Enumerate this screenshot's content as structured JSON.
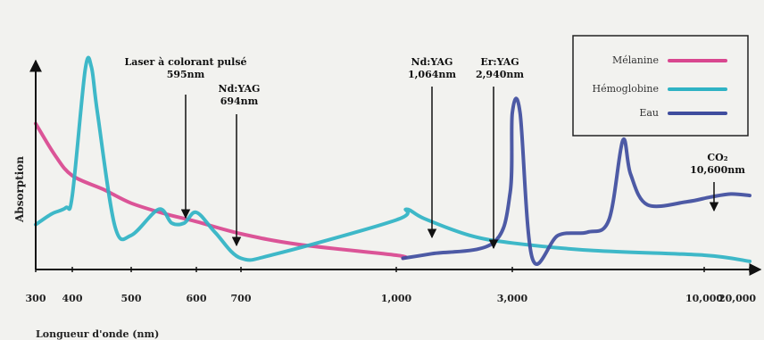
{
  "chart_data": {
    "type": "line",
    "title": "",
    "xlabel": "Longueur d'onde (nm)",
    "ylabel": "Absorption",
    "xscale": "log",
    "xlim": [
      300,
      20000
    ],
    "x_ticks": [
      {
        "value": 300,
        "label": "300"
      },
      {
        "value": 400,
        "label": "400"
      },
      {
        "value": 500,
        "label": "500"
      },
      {
        "value": 600,
        "label": "600"
      },
      {
        "value": 700,
        "label": "700"
      },
      {
        "value": 1000,
        "label": "1,000"
      },
      {
        "value": 3000,
        "label": "3,000"
      },
      {
        "value": 10000,
        "label": "10,000"
      },
      {
        "value": 20000,
        "label": "20,000"
      }
    ],
    "legend_position": "top-right",
    "series": [
      {
        "name": "Mélanine",
        "color": "#d9478f",
        "points": [
          [
            300,
            0.93
          ],
          [
            350,
            0.72
          ],
          [
            400,
            0.59
          ],
          [
            450,
            0.5
          ],
          [
            500,
            0.41
          ],
          [
            550,
            0.34
          ],
          [
            600,
            0.29
          ],
          [
            700,
            0.21
          ],
          [
            800,
            0.14
          ],
          [
            1000,
            0.07
          ],
          [
            1065,
            0.05
          ]
        ]
      },
      {
        "name": "Hémoglobine",
        "color": "#2fb3c4",
        "points": [
          [
            300,
            0.27
          ],
          [
            340,
            0.34
          ],
          [
            380,
            0.38
          ],
          [
            400,
            0.46
          ],
          [
            420,
            1.28
          ],
          [
            430,
            1.3
          ],
          [
            440,
            1.0
          ],
          [
            470,
            0.26
          ],
          [
            500,
            0.2
          ],
          [
            540,
            0.37
          ],
          [
            560,
            0.28
          ],
          [
            580,
            0.28
          ],
          [
            600,
            0.35
          ],
          [
            640,
            0.22
          ],
          [
            700,
            0.05
          ],
          [
            760,
            0.08
          ],
          [
            1000,
            0.3
          ],
          [
            1100,
            0.37
          ],
          [
            1300,
            0.31
          ],
          [
            2000,
            0.2
          ],
          [
            3000,
            0.15
          ],
          [
            5000,
            0.1
          ],
          [
            10000,
            0.07
          ],
          [
            20000,
            0.03
          ]
        ]
      },
      {
        "name": "Eau",
        "color": "#3f4d9e",
        "points": [
          [
            1065,
            0.05
          ],
          [
            1400,
            0.08
          ],
          [
            2500,
            0.15
          ],
          [
            2940,
            0.48
          ],
          [
            3000,
            1.0
          ],
          [
            3150,
            1.0
          ],
          [
            3400,
            0.05
          ],
          [
            4000,
            0.2
          ],
          [
            4800,
            0.22
          ],
          [
            5500,
            0.3
          ],
          [
            6000,
            0.82
          ],
          [
            6300,
            0.6
          ],
          [
            7000,
            0.4
          ],
          [
            9000,
            0.42
          ],
          [
            11000,
            0.45
          ],
          [
            15000,
            0.47
          ],
          [
            20000,
            0.46
          ]
        ]
      }
    ],
    "annotations": [
      {
        "lines": [
          "Laser à colorant pulsé",
          "595nm"
        ],
        "x": 595
      },
      {
        "lines": [
          "Nd:YAG",
          "694nm"
        ],
        "x": 694
      },
      {
        "lines": [
          "Nd:YAG",
          "1,064nm"
        ],
        "x": 1064
      },
      {
        "lines": [
          "Er:YAG",
          "2,940nm"
        ],
        "x": 2940
      },
      {
        "lines": [
          "CO₂",
          "10,600nm"
        ],
        "x": 10600
      }
    ]
  }
}
